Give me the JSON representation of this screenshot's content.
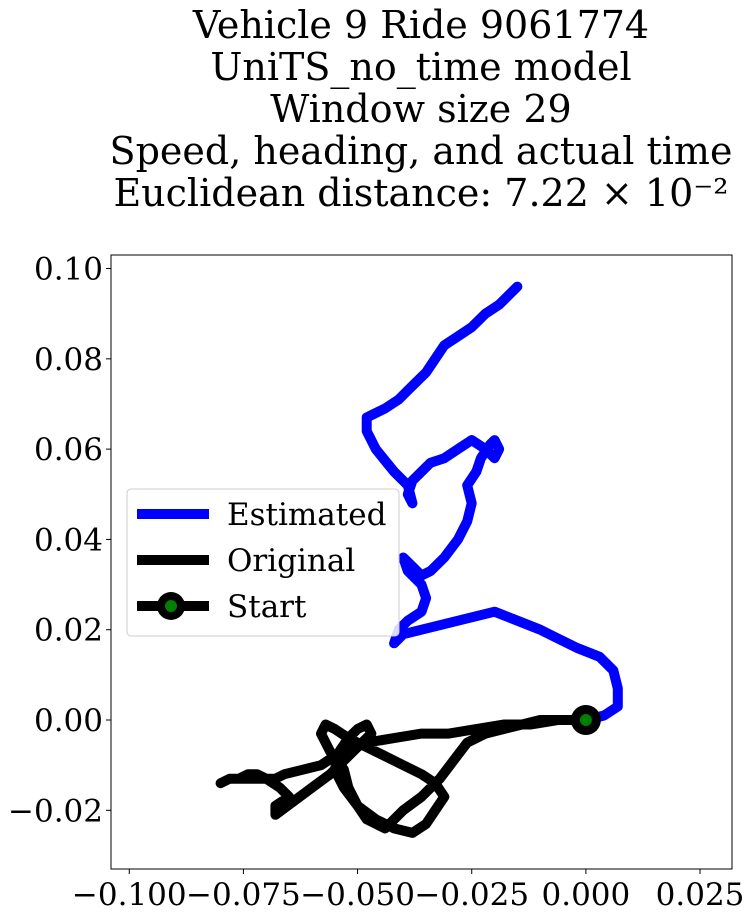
{
  "chart_data": {
    "type": "line",
    "title_lines": [
      "Vehicle 9 Ride 9061774",
      "UniTS_no_time model",
      "Window size 29",
      "Speed, heading, and actual time",
      "Euclidean distance: 7.22 × 10⁻²"
    ],
    "xlabel": "",
    "ylabel": "",
    "xlim": [
      -0.104,
      0.032
    ],
    "ylim": [
      -0.033,
      0.103
    ],
    "xticks": [
      -0.1,
      -0.075,
      -0.05,
      -0.025,
      0.0,
      0.025
    ],
    "xtick_labels": [
      "−0.100",
      "−0.075",
      "−0.050",
      "−0.025",
      "0.000",
      "0.025"
    ],
    "yticks": [
      -0.02,
      0.0,
      0.02,
      0.04,
      0.06,
      0.08,
      0.1
    ],
    "ytick_labels": [
      "−0.02",
      "0.00",
      "0.02",
      "0.04",
      "0.06",
      "0.08",
      "0.10"
    ],
    "grid": false,
    "legend_position": "center-left",
    "colors": {
      "estimated": "#0000ff",
      "original": "#000000",
      "start_marker": "#008000"
    },
    "series": [
      {
        "name": "Estimated",
        "x": [
          0.0,
          0.004,
          0.007,
          0.007,
          0.006,
          0.003,
          -0.002,
          -0.006,
          -0.01,
          -0.015,
          -0.02,
          -0.024,
          -0.028,
          -0.032,
          -0.036,
          -0.04,
          -0.042,
          -0.041,
          -0.039,
          -0.036,
          -0.035,
          -0.036,
          -0.039,
          -0.04,
          -0.038,
          -0.036,
          -0.034,
          -0.031,
          -0.028,
          -0.026,
          -0.025,
          -0.026,
          -0.024,
          -0.023,
          -0.021,
          -0.02,
          -0.019,
          -0.02,
          -0.022,
          -0.025,
          -0.028,
          -0.031,
          -0.034,
          -0.036,
          -0.038,
          -0.039,
          -0.038,
          -0.039,
          -0.042,
          -0.046,
          -0.048,
          -0.048,
          -0.046,
          -0.044,
          -0.041,
          -0.039,
          -0.037,
          -0.035,
          -0.033,
          -0.031,
          -0.028,
          -0.025,
          -0.022,
          -0.019,
          -0.017,
          -0.015
        ],
        "y": [
          0.0,
          0.001,
          0.003,
          0.007,
          0.011,
          0.014,
          0.016,
          0.018,
          0.02,
          0.022,
          0.024,
          0.023,
          0.022,
          0.021,
          0.02,
          0.019,
          0.017,
          0.02,
          0.022,
          0.024,
          0.027,
          0.03,
          0.033,
          0.036,
          0.034,
          0.032,
          0.033,
          0.036,
          0.04,
          0.044,
          0.048,
          0.052,
          0.055,
          0.058,
          0.061,
          0.062,
          0.06,
          0.058,
          0.06,
          0.062,
          0.06,
          0.058,
          0.057,
          0.055,
          0.053,
          0.05,
          0.048,
          0.052,
          0.055,
          0.06,
          0.064,
          0.067,
          0.068,
          0.069,
          0.071,
          0.073,
          0.075,
          0.077,
          0.08,
          0.083,
          0.085,
          0.087,
          0.09,
          0.092,
          0.094,
          0.096
        ]
      },
      {
        "name": "Original",
        "x": [
          0.0,
          -0.006,
          -0.012,
          -0.018,
          -0.024,
          -0.03,
          -0.036,
          -0.042,
          -0.048,
          -0.052,
          -0.055,
          -0.058,
          -0.062,
          -0.066,
          -0.068,
          -0.07,
          -0.072,
          -0.074,
          -0.076,
          -0.078,
          -0.08,
          -0.078,
          -0.074,
          -0.07,
          -0.067,
          -0.065,
          -0.068,
          -0.068,
          -0.064,
          -0.06,
          -0.056,
          -0.053,
          -0.05,
          -0.047,
          -0.048,
          -0.05,
          -0.052,
          -0.054,
          -0.055,
          -0.053,
          -0.05,
          -0.046,
          -0.042,
          -0.038,
          -0.035,
          -0.033,
          -0.031,
          -0.033,
          -0.036,
          -0.04,
          -0.044,
          -0.048,
          -0.052,
          -0.055,
          -0.057,
          -0.058,
          -0.056,
          -0.053,
          -0.052,
          -0.05,
          -0.048,
          -0.044,
          -0.04,
          -0.036,
          -0.032,
          -0.029,
          -0.026,
          -0.022,
          -0.018,
          -0.014,
          -0.01,
          -0.006,
          -0.003,
          0.0
        ],
        "y": [
          0.0,
          0.0,
          -0.001,
          -0.001,
          -0.002,
          -0.003,
          -0.003,
          -0.004,
          -0.005,
          -0.006,
          -0.008,
          -0.01,
          -0.011,
          -0.012,
          -0.013,
          -0.013,
          -0.012,
          -0.012,
          -0.013,
          -0.013,
          -0.014,
          -0.013,
          -0.013,
          -0.013,
          -0.015,
          -0.017,
          -0.019,
          -0.021,
          -0.018,
          -0.015,
          -0.012,
          -0.009,
          -0.006,
          -0.003,
          -0.001,
          -0.002,
          -0.004,
          -0.007,
          -0.011,
          -0.015,
          -0.019,
          -0.022,
          -0.024,
          -0.025,
          -0.023,
          -0.02,
          -0.017,
          -0.014,
          -0.012,
          -0.01,
          -0.008,
          -0.006,
          -0.004,
          -0.002,
          -0.001,
          -0.003,
          -0.007,
          -0.011,
          -0.015,
          -0.019,
          -0.022,
          -0.024,
          -0.02,
          -0.017,
          -0.013,
          -0.009,
          -0.005,
          -0.003,
          -0.002,
          -0.001,
          0.0,
          0.0,
          0.0,
          0.0
        ]
      }
    ],
    "start_point": {
      "name": "Start",
      "x": 0.0,
      "y": 0.0
    },
    "legend": [
      "Estimated",
      "Original",
      "Start"
    ]
  }
}
